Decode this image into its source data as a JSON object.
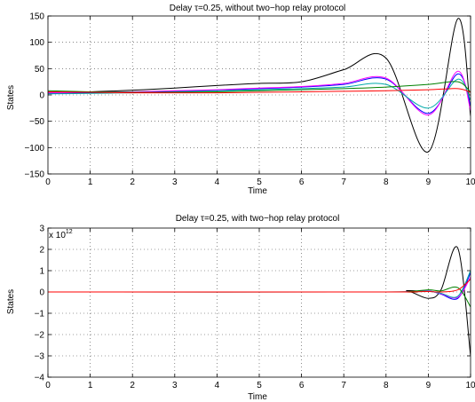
{
  "chart_data": [
    {
      "type": "line",
      "title": "Delay τ=0.25, without two−hop relay protocol",
      "xlabel": "Time",
      "ylabel": "States",
      "xlim": [
        0,
        10
      ],
      "ylim": [
        -150,
        150
      ],
      "x_ticks": [
        "0",
        "1",
        "2",
        "3",
        "4",
        "5",
        "6",
        "7",
        "8",
        "9",
        "10"
      ],
      "y_ticks": [
        "150",
        "100",
        "50",
        "0",
        "−50",
        "−100",
        "−150"
      ],
      "y_tick_values": [
        150,
        100,
        50,
        0,
        -50,
        -100,
        -150
      ],
      "grid": true,
      "series": [
        {
          "color": "#000000",
          "x": [
            0,
            1,
            2,
            3,
            4,
            5,
            6,
            7,
            8,
            9,
            9.7,
            10
          ],
          "values": [
            5,
            6,
            9,
            13,
            18,
            22,
            25,
            48,
            70,
            -108,
            145,
            -40
          ]
        },
        {
          "color": "#0000ff",
          "x": [
            0,
            1,
            2,
            3,
            4,
            5,
            6,
            7,
            8,
            9,
            9.7,
            10
          ],
          "values": [
            3,
            4,
            5,
            7,
            9,
            12,
            15,
            20,
            30,
            -35,
            40,
            -20
          ]
        },
        {
          "color": "#ff00ff",
          "x": [
            0,
            1,
            2,
            3,
            4,
            5,
            6,
            7,
            8,
            9,
            9.7,
            10
          ],
          "values": [
            4,
            5,
            6,
            8,
            10,
            13,
            16,
            22,
            32,
            -38,
            45,
            -30
          ]
        },
        {
          "color": "#00aaaa",
          "x": [
            0,
            1,
            2,
            3,
            4,
            5,
            6,
            7,
            8,
            9,
            9.7,
            10
          ],
          "values": [
            2,
            3,
            4,
            6,
            8,
            10,
            12,
            15,
            20,
            -25,
            30,
            -10
          ]
        },
        {
          "color": "#008000",
          "x": [
            0,
            1,
            2,
            3,
            4,
            5,
            6,
            7,
            8,
            9,
            9.7,
            10
          ],
          "values": [
            8,
            6,
            5,
            5,
            6,
            8,
            10,
            12,
            15,
            20,
            25,
            5
          ]
        },
        {
          "color": "#ff0000",
          "x": [
            0,
            1,
            2,
            3,
            4,
            5,
            6,
            7,
            8,
            9,
            9.7,
            10
          ],
          "values": [
            6,
            5,
            4,
            4,
            4,
            5,
            6,
            7,
            8,
            10,
            12,
            5
          ]
        }
      ]
    },
    {
      "type": "line",
      "title": "Delay τ=0.25, with two−hop relay protocol",
      "xlabel": "Time",
      "ylabel": "States",
      "y_multiplier": "x 10",
      "y_multiplier_exponent": "12",
      "xlim": [
        0,
        10
      ],
      "ylim": [
        -4,
        3
      ],
      "x_ticks": [
        "0",
        "1",
        "2",
        "3",
        "4",
        "5",
        "6",
        "7",
        "8",
        "9",
        "10"
      ],
      "y_ticks": [
        "3",
        "2",
        "1",
        "0",
        "−1",
        "−2",
        "−3",
        "−4"
      ],
      "y_tick_values": [
        3,
        2,
        1,
        0,
        -1,
        -2,
        -3,
        -4
      ],
      "grid": true,
      "series": [
        {
          "color": "#000000",
          "x": [
            0,
            8,
            8.5,
            9,
            9.3,
            9.7,
            10
          ],
          "values": [
            0,
            0,
            0.05,
            -0.3,
            0.1,
            2.05,
            -3
          ]
        },
        {
          "color": "#0000ff",
          "x": [
            0,
            8,
            8.5,
            9,
            9.3,
            9.7,
            10
          ],
          "values": [
            0,
            0,
            0.01,
            0.05,
            -0.1,
            -0.3,
            0.9
          ]
        },
        {
          "color": "#ff00ff",
          "x": [
            0,
            8,
            8.5,
            9,
            9.3,
            9.7,
            10
          ],
          "values": [
            0,
            0,
            0.01,
            0.04,
            -0.08,
            -0.25,
            0.7
          ]
        },
        {
          "color": "#00aaaa",
          "x": [
            0,
            8,
            8.5,
            9,
            9.3,
            9.7,
            10
          ],
          "values": [
            0,
            0,
            0.01,
            0.03,
            -0.06,
            -0.2,
            1.0
          ]
        },
        {
          "color": "#008000",
          "x": [
            0,
            8,
            8.5,
            9,
            9.3,
            9.7,
            10
          ],
          "values": [
            0,
            0,
            0.005,
            0.1,
            0.05,
            0.2,
            -0.7
          ]
        },
        {
          "color": "#ff0000",
          "x": [
            0,
            8,
            8.5,
            9,
            9.3,
            9.7,
            10
          ],
          "values": [
            0,
            0,
            0,
            0.02,
            0,
            0.1,
            0.6
          ]
        }
      ]
    }
  ]
}
